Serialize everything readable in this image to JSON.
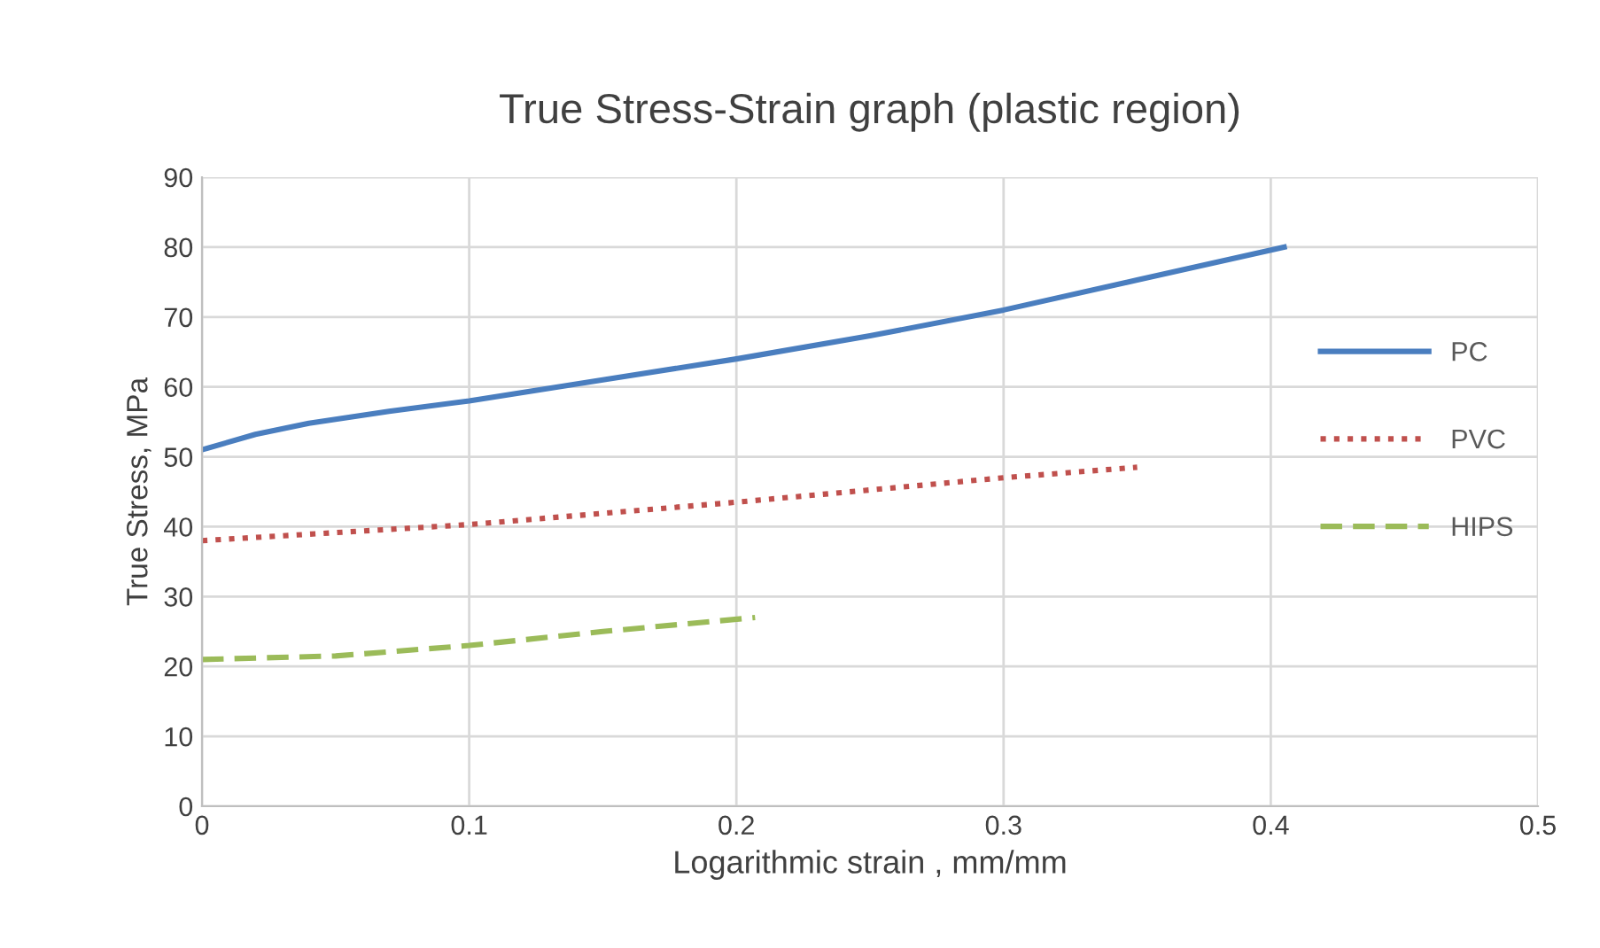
{
  "chart_data": {
    "type": "line",
    "title": "True Stress-Strain graph (plastic region)",
    "xlabel": "Logarithmic strain , mm/mm",
    "ylabel": "True Stress, MPa",
    "xlim": [
      0,
      0.5
    ],
    "xticks": [
      {
        "value": 0,
        "label": "0"
      },
      0.1,
      0.2,
      0.3,
      0.4,
      0.5
    ],
    "ylim": [
      0,
      90
    ],
    "yticks": [
      0,
      10,
      20,
      30,
      40,
      50,
      60,
      70,
      80,
      90
    ],
    "grid": true,
    "legend": "right",
    "marker": "none",
    "series": [
      {
        "name": "PC",
        "color": "#4a7ebf",
        "line_style": "solid",
        "x": [
          0,
          0.02,
          0.04,
          0.07,
          0.1,
          0.15,
          0.2,
          0.25,
          0.3,
          0.35,
          0.405
        ],
        "values": [
          51,
          53.2,
          54.8,
          56.5,
          58,
          61,
          64,
          67.3,
          71,
          75.3,
          80
        ]
      },
      {
        "name": "PVC",
        "color": "#c0504d",
        "line_style": "dotted",
        "x": [
          0,
          0.1,
          0.2,
          0.3,
          0.35
        ],
        "values": [
          38,
          40.3,
          43.5,
          47,
          48.5
        ]
      },
      {
        "name": "HIPS",
        "color": "#9bbb59",
        "line_style": "dashed",
        "x": [
          0,
          0.05,
          0.1,
          0.15,
          0.207
        ],
        "values": [
          21,
          21.5,
          23,
          25,
          27
        ]
      }
    ]
  }
}
